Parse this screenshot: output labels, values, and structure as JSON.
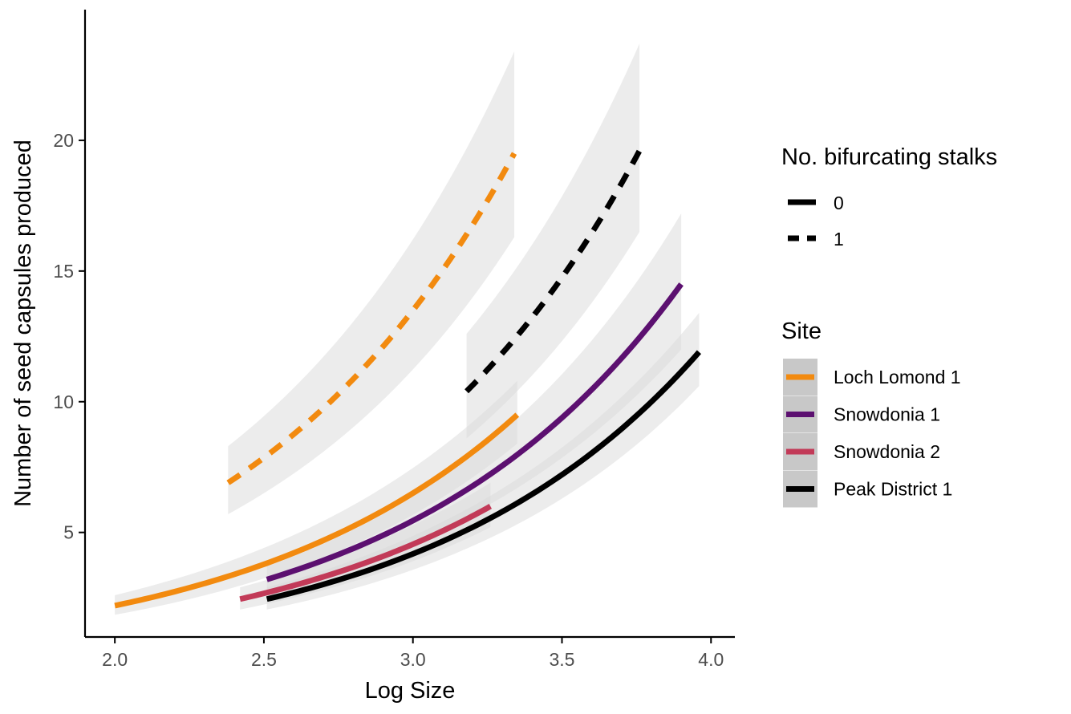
{
  "chart_data": {
    "type": "line",
    "title": "",
    "xlabel": "Log Size",
    "ylabel": "Number of seed capsules produced",
    "xlim": [
      1.9,
      4.08
    ],
    "ylim": [
      1.0,
      25.0
    ],
    "x_ticks": [
      {
        "value": 2.0,
        "label": "2.0"
      },
      {
        "value": 2.5,
        "label": "2.5"
      },
      {
        "value": 3.0,
        "label": "3.0"
      },
      {
        "value": 3.5,
        "label": "3.5"
      },
      {
        "value": 4.0,
        "label": "4.0"
      }
    ],
    "y_ticks": [
      {
        "value": 5,
        "label": "5"
      },
      {
        "value": 10,
        "label": "10"
      },
      {
        "value": 15,
        "label": "15"
      },
      {
        "value": 20,
        "label": "20"
      }
    ],
    "grid": false,
    "legend_placement": "right",
    "legends": {
      "linetype": {
        "title": "No. bifurcating stalks",
        "entries": [
          {
            "label": "0",
            "dash": "solid"
          },
          {
            "label": "1",
            "dash": "dashed"
          }
        ]
      },
      "site": {
        "title": "Site",
        "entries": [
          {
            "label": "Loch Lomond 1",
            "color": "#f28a0f"
          },
          {
            "label": "Snowdonia 1",
            "color": "#5c1070"
          },
          {
            "label": "Snowdonia 2",
            "color": "#c23a58"
          },
          {
            "label": "Peak District 1",
            "color": "#000000"
          }
        ]
      }
    },
    "series": [
      {
        "site": "Loch Lomond 1",
        "stalks": "0",
        "color": "#f28a0f",
        "x": [
          2.0,
          3.35
        ],
        "y": [
          2.2,
          9.5
        ],
        "ci_low": [
          1.85,
          8.4
        ],
        "ci_high": [
          2.6,
          10.8
        ]
      },
      {
        "site": "Snowdonia 1",
        "stalks": "0",
        "color": "#5c1070",
        "x": [
          2.51,
          3.9
        ],
        "y": [
          3.2,
          14.5
        ],
        "ci_low": [
          2.75,
          12.0
        ],
        "ci_high": [
          3.7,
          17.2
        ]
      },
      {
        "site": "Snowdonia 2",
        "stalks": "0",
        "color": "#c23a58",
        "x": [
          2.42,
          3.26
        ],
        "y": [
          2.45,
          6.0
        ],
        "ci_low": [
          2.05,
          5.2
        ],
        "ci_high": [
          2.9,
          6.9
        ]
      },
      {
        "site": "Peak District 1",
        "stalks": "0",
        "color": "#000000",
        "x": [
          2.51,
          3.96
        ],
        "y": [
          2.45,
          11.9
        ],
        "ci_low": [
          2.05,
          10.6
        ],
        "ci_high": [
          2.9,
          13.4
        ]
      },
      {
        "site": "Loch Lomond 1",
        "stalks": "1",
        "color": "#f28a0f",
        "x": [
          2.38,
          3.34
        ],
        "y": [
          6.9,
          19.5
        ],
        "ci_low": [
          5.7,
          16.3
        ],
        "ci_high": [
          8.3,
          23.4
        ]
      },
      {
        "site": "Peak District 1",
        "stalks": "1",
        "color": "#000000",
        "x": [
          3.18,
          3.76
        ],
        "y": [
          10.4,
          19.6
        ],
        "ci_low": [
          8.6,
          16.5
        ],
        "ci_high": [
          12.6,
          23.7
        ]
      }
    ]
  }
}
